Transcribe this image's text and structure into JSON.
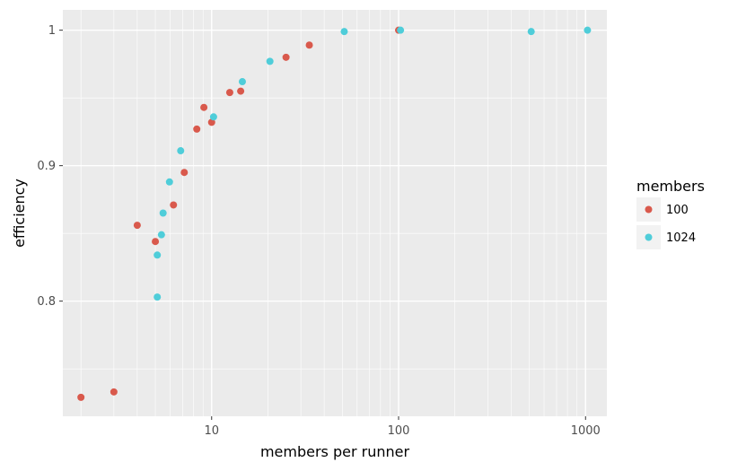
{
  "chart_data": {
    "type": "scatter",
    "title": "",
    "xlabel": "members per runner",
    "ylabel": "efficiency",
    "x_scale": "log10",
    "xlim": [
      1.6,
      1300
    ],
    "ylim": [
      0.715,
      1.015
    ],
    "x_ticks": [
      {
        "value": 10,
        "label": "10"
      },
      {
        "value": 100,
        "label": "100"
      },
      {
        "value": 1000,
        "label": "1000"
      }
    ],
    "y_ticks": [
      {
        "value": 0.8,
        "label": "0.8"
      },
      {
        "value": 0.9,
        "label": "0.9"
      },
      {
        "value": 1.0,
        "label": "1"
      }
    ],
    "grid": true,
    "legend": {
      "title": "members",
      "placement": "right"
    },
    "series": [
      {
        "name": "100",
        "color": "#d9594c",
        "points": [
          {
            "x": 2,
            "y": 0.729
          },
          {
            "x": 3,
            "y": 0.733
          },
          {
            "x": 4,
            "y": 0.856
          },
          {
            "x": 5,
            "y": 0.844
          },
          {
            "x": 6.25,
            "y": 0.871
          },
          {
            "x": 7.14,
            "y": 0.895
          },
          {
            "x": 8.33,
            "y": 0.927
          },
          {
            "x": 9.09,
            "y": 0.943
          },
          {
            "x": 10,
            "y": 0.932
          },
          {
            "x": 12.5,
            "y": 0.954
          },
          {
            "x": 14.3,
            "y": 0.955
          },
          {
            "x": 25,
            "y": 0.98
          },
          {
            "x": 33.3,
            "y": 0.989
          },
          {
            "x": 100,
            "y": 1.0
          }
        ]
      },
      {
        "name": "1024",
        "color": "#4fcdd9",
        "points": [
          {
            "x": 5.12,
            "y": 0.803
          },
          {
            "x": 5.12,
            "y": 0.834
          },
          {
            "x": 5.39,
            "y": 0.849
          },
          {
            "x": 5.5,
            "y": 0.865
          },
          {
            "x": 5.95,
            "y": 0.888
          },
          {
            "x": 6.83,
            "y": 0.911
          },
          {
            "x": 10.24,
            "y": 0.936
          },
          {
            "x": 14.6,
            "y": 0.962
          },
          {
            "x": 20.5,
            "y": 0.977
          },
          {
            "x": 51.2,
            "y": 0.999
          },
          {
            "x": 102.4,
            "y": 1.0
          },
          {
            "x": 512,
            "y": 0.999
          },
          {
            "x": 1024,
            "y": 1.0
          }
        ]
      }
    ]
  }
}
